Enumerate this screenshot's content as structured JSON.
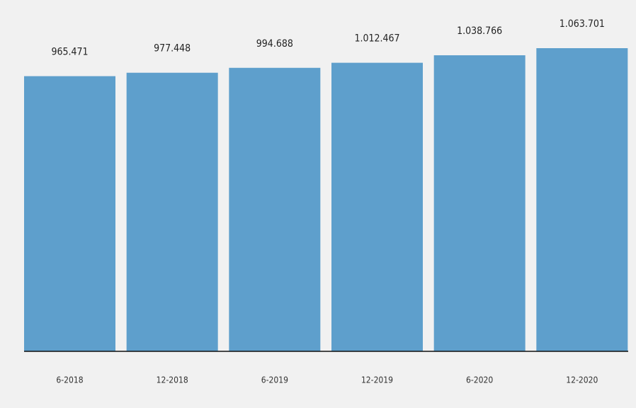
{
  "chart_data": {
    "type": "bar",
    "categories": [
      "6-2018",
      "12-2018",
      "6-2019",
      "12-2019",
      "6-2020",
      "12-2020"
    ],
    "values": [
      965471,
      977448,
      994688,
      1012467,
      1038766,
      1063701
    ],
    "value_labels": [
      "965.471",
      "977.448",
      "994.688",
      "1.012.467",
      "1.038.766",
      "1.063.701"
    ],
    "color": "#5e9fcc"
  }
}
